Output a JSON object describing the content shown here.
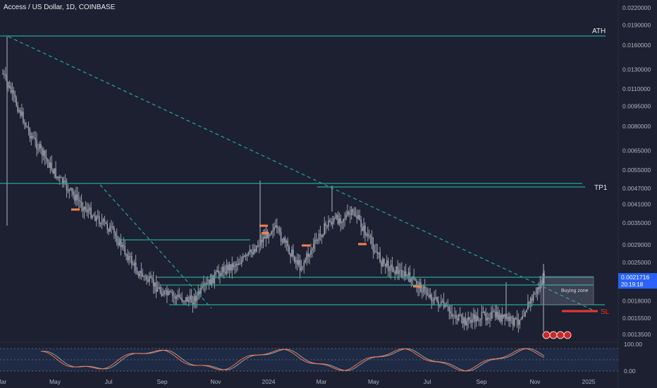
{
  "header": {
    "title": "Access / US Dollar, 1D, COINBASE"
  },
  "price_axis": {
    "ticks": [
      "0.0220000",
      "0.0190000",
      "0.0160000",
      "0.0130000",
      "0.0110000",
      "0.0095000",
      "0.0080000",
      "0.0065000",
      "0.0055000",
      "0.0047000",
      "0.0041000",
      "0.0035000",
      "0.0029000",
      "0.0025000",
      "0.0018000",
      "0.0015500",
      "0.0013500"
    ],
    "current_price": "0.0021716",
    "countdown": "20:19:18"
  },
  "time_axis": {
    "ticks": [
      "Mar",
      "May",
      "Jul",
      "Sep",
      "Nov",
      "2024",
      "Mar",
      "May",
      "Jul",
      "Sep",
      "Nov",
      "2025"
    ]
  },
  "annotations": {
    "ath": "ATH",
    "tp1": "TP1",
    "sl": "SL",
    "buying_zone": "Buying zone"
  },
  "indicator": {
    "ticks": [
      "100.00",
      "0.00"
    ]
  },
  "colors": {
    "background": "#1c2030",
    "candle": "#9aa0ab",
    "level_line": "#26a69a",
    "trend_line": "#26a69a",
    "stop_loss": "#e53935",
    "marker": "#ff7f50",
    "price_label": "#2962ff",
    "oscillator_fast": "#ff7043",
    "oscillator_slow": "#90a4ae"
  },
  "chart_data": {
    "type": "candlestick",
    "title": "Access / US Dollar, 1D, COINBASE",
    "x": [
      "2023-03",
      "2023-04",
      "2023-05",
      "2023-06",
      "2023-07",
      "2023-08",
      "2023-09",
      "2023-10",
      "2023-11",
      "2023-12",
      "2024-01",
      "2024-02",
      "2024-03",
      "2024-04",
      "2024-05",
      "2024-06",
      "2024-07",
      "2024-08",
      "2024-09",
      "2024-10",
      "2024-11"
    ],
    "close": [
      0.0125,
      0.0075,
      0.0052,
      0.004,
      0.0033,
      0.0023,
      0.0019,
      0.0018,
      0.0023,
      0.0026,
      0.0034,
      0.0024,
      0.0035,
      0.0038,
      0.0025,
      0.0022,
      0.0018,
      0.0015,
      0.0016,
      0.0015,
      0.0021716
    ],
    "levels": [
      {
        "label": "ATH",
        "value": 0.017
      },
      {
        "label": "TP1",
        "value": 0.0048
      },
      {
        "label": "",
        "value": 0.0032
      },
      {
        "label": "",
        "value": 0.0022
      },
      {
        "label": "",
        "value": 0.0021
      },
      {
        "label": "",
        "value": 0.0018
      },
      {
        "label": "SL",
        "value": 0.00165
      }
    ],
    "buying_zone": [
      0.0018,
      0.0022
    ],
    "current_price": 0.0021716,
    "y_scale": "log",
    "indicator_ylim": [
      0,
      100
    ]
  }
}
